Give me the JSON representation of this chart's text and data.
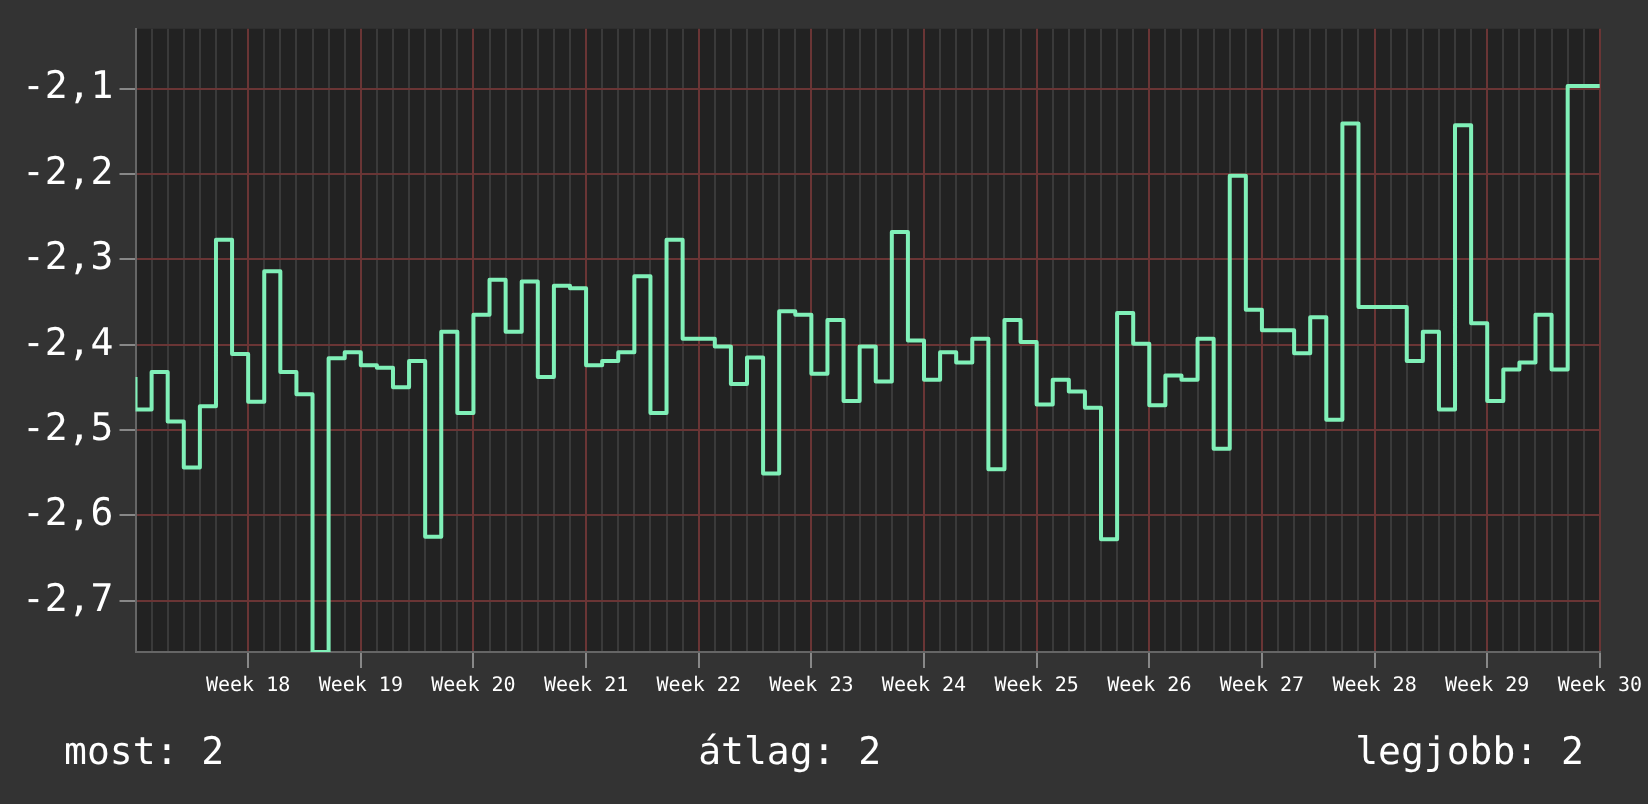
{
  "chart_data": {
    "type": "step",
    "categories": [
      null,
      null,
      null,
      null,
      null,
      null,
      null,
      "Week 18",
      null,
      null,
      null,
      null,
      null,
      null,
      "Week 19",
      null,
      null,
      null,
      null,
      null,
      null,
      "Week 20",
      null,
      null,
      null,
      null,
      null,
      null,
      "Week 21",
      null,
      null,
      null,
      null,
      null,
      null,
      "Week 22",
      null,
      null,
      null,
      null,
      null,
      null,
      "Week 23",
      null,
      null,
      null,
      null,
      null,
      null,
      "Week 24",
      null,
      null,
      null,
      null,
      null,
      null,
      "Week 25",
      null,
      null,
      null,
      null,
      null,
      null,
      "Week 26",
      null,
      null,
      null,
      null,
      null,
      null,
      "Week 27",
      null,
      null,
      null,
      null,
      null,
      null,
      "Week 28",
      null,
      null,
      null,
      null,
      null,
      null,
      "Week 29",
      null,
      null,
      null,
      null,
      null,
      null,
      "Week 30"
    ],
    "series": [
      {
        "color": "#80f0b8",
        "values": [
          -2.438,
          -2.476,
          -2.432,
          -2.49,
          -2.544,
          -2.472,
          -2.277,
          -2.411,
          -2.467,
          -2.314,
          -2.432,
          -2.458,
          -2.76,
          -2.416,
          -2.409,
          -2.424,
          -2.427,
          -2.45,
          -2.419,
          -2.625,
          -2.385,
          -2.48,
          -2.365,
          -2.324,
          -2.385,
          -2.326,
          -2.438,
          -2.331,
          -2.334,
          -2.424,
          -2.419,
          -2.409,
          -2.32,
          -2.48,
          -2.277,
          -2.393,
          -2.393,
          -2.402,
          -2.446,
          -2.415,
          -2.551,
          -2.361,
          -2.365,
          -2.434,
          -2.371,
          -2.466,
          -2.402,
          -2.443,
          -2.268,
          -2.395,
          -2.441,
          -2.409,
          -2.421,
          -2.393,
          -2.546,
          -2.371,
          -2.397,
          -2.47,
          -2.441,
          -2.455,
          -2.474,
          -2.628,
          -2.363,
          -2.399,
          -2.471,
          -2.436,
          -2.441,
          -2.393,
          -2.522,
          -2.202,
          -2.359,
          -2.383,
          -2.383,
          -2.41,
          -2.368,
          -2.488,
          -2.141,
          -2.356,
          -2.356,
          -2.356,
          -2.419,
          -2.385,
          -2.476,
          -2.143,
          -2.375,
          -2.466,
          -2.429,
          -2.421,
          -2.365,
          -2.429,
          -2.097,
          -2.097
        ]
      }
    ],
    "ylim": [
      -2.76,
      -2.03
    ],
    "yticks": [
      {
        "value": -2.7,
        "label": "-2,7"
      },
      {
        "value": -2.6,
        "label": "-2,6"
      },
      {
        "value": -2.5,
        "label": "-2,5"
      },
      {
        "value": -2.4,
        "label": "-2,4"
      },
      {
        "value": -2.3,
        "label": "-2,3"
      },
      {
        "value": -2.2,
        "label": "-2,2"
      },
      {
        "value": -2.1,
        "label": "-2,1"
      }
    ],
    "grid": true,
    "legend": false,
    "marker": "none",
    "line_style": "solid",
    "annotations": [
      "most: 2",
      "átlag: 2",
      "legjobb: 2"
    ]
  }
}
